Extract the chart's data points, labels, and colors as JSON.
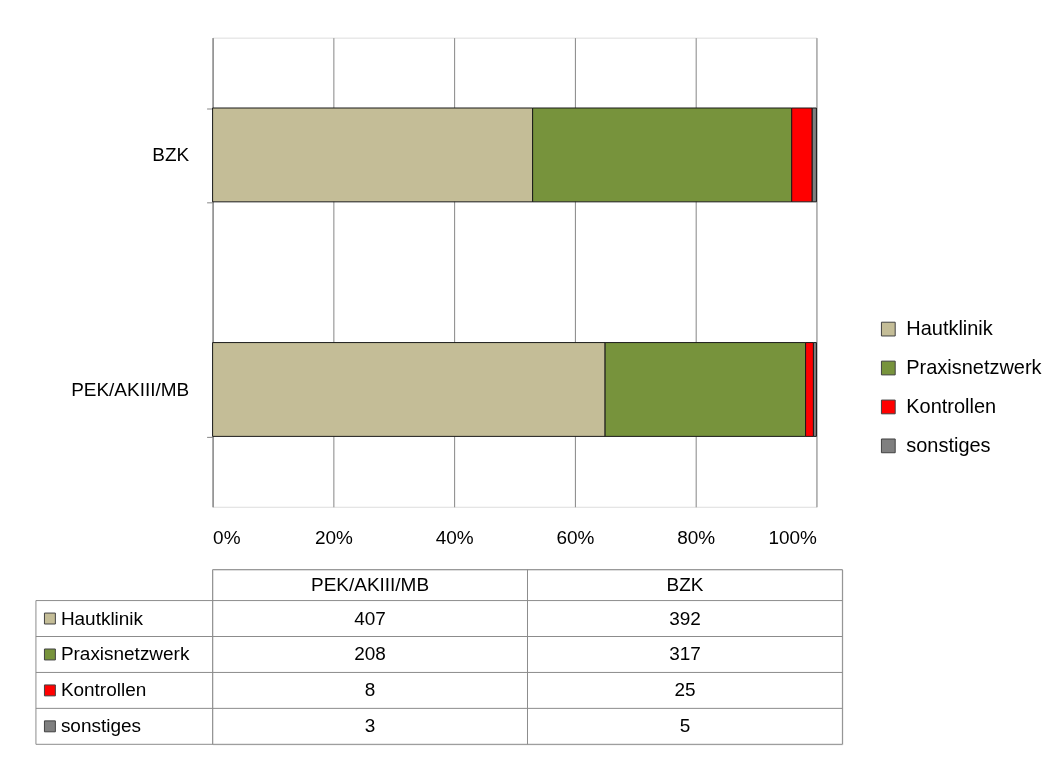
{
  "chart_data": {
    "type": "bar",
    "orientation": "horizontal",
    "stacked": true,
    "categories": [
      "BZK",
      "PEK/AKIII/MB"
    ],
    "series": [
      {
        "name": "Hautklinik",
        "color": "#c4bd97",
        "values": [
          53.0,
          65.0
        ]
      },
      {
        "name": "Praxisnetzwerk",
        "color": "#77933c",
        "values": [
          42.9,
          33.2
        ]
      },
      {
        "name": "Kontrollen",
        "color": "#ff0000",
        "values": [
          3.4,
          1.3
        ]
      },
      {
        "name": "sonstiges",
        "color": "#7f7f7f",
        "values": [
          0.7,
          0.5
        ]
      }
    ],
    "xlim": [
      0,
      100
    ],
    "xticks": [
      {
        "value": 0,
        "label": "0%"
      },
      {
        "value": 20,
        "label": "20%"
      },
      {
        "value": 40,
        "label": "40%"
      },
      {
        "value": 60,
        "label": "60%"
      },
      {
        "value": 80,
        "label": "80%"
      },
      {
        "value": 100,
        "label": "100%"
      }
    ],
    "annotations": [
      "407",
      "392",
      "208",
      "317",
      "8",
      "25",
      "3",
      "5"
    ],
    "grid": "x",
    "legend": "right"
  }
}
